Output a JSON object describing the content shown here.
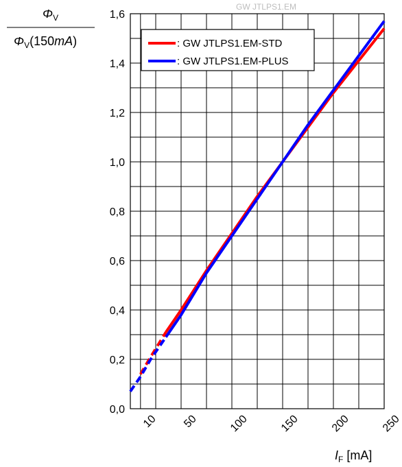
{
  "watermark": "GW JTLPS1.EM",
  "y_label": {
    "numerator": "Φ",
    "numerator_sub": "V",
    "denominator": "Φ",
    "denominator_sub": "V",
    "denominator_tail": "(150",
    "denominator_unit": "mA",
    "denominator_close": ")"
  },
  "x_label": {
    "symbol": "I",
    "sub": "F",
    "unit": " [mA]"
  },
  "colors": {
    "std": "#ff0000",
    "plus": "#0000ff",
    "grid": "#000000",
    "watermark": "#bdbdbd"
  },
  "chart_data": {
    "type": "line",
    "title": "",
    "x_ticks": [
      "10",
      "50",
      "100",
      "150",
      "200",
      "250"
    ],
    "y_ticks": [
      "0,0",
      "0,2",
      "0,4",
      "0,6",
      "0,8",
      "1,0",
      "1,2",
      "1,4",
      "1,6"
    ],
    "xlim": [
      0,
      250
    ],
    "ylim": [
      0,
      1.6
    ],
    "grid": true,
    "legend_position": "top-left",
    "series": [
      {
        "name": ": GW JTLPS1.EM-STD",
        "color": "#ff0000",
        "x": [
          10,
          20,
          35,
          50,
          75,
          100,
          125,
          150,
          175,
          200,
          225,
          250
        ],
        "y": [
          0.14,
          0.21,
          0.31,
          0.4,
          0.56,
          0.71,
          0.86,
          1.0,
          1.14,
          1.28,
          1.41,
          1.54
        ]
      },
      {
        "name": ": GW JTLPS1.EM-PLUS",
        "color": "#0000ff",
        "x": [
          0,
          10,
          20,
          30,
          35,
          50,
          75,
          100,
          125,
          150,
          175,
          200,
          225,
          250
        ],
        "y": [
          0.07,
          0.13,
          0.2,
          0.26,
          0.29,
          0.38,
          0.55,
          0.7,
          0.85,
          1.0,
          1.15,
          1.29,
          1.43,
          1.57
        ]
      }
    ]
  }
}
